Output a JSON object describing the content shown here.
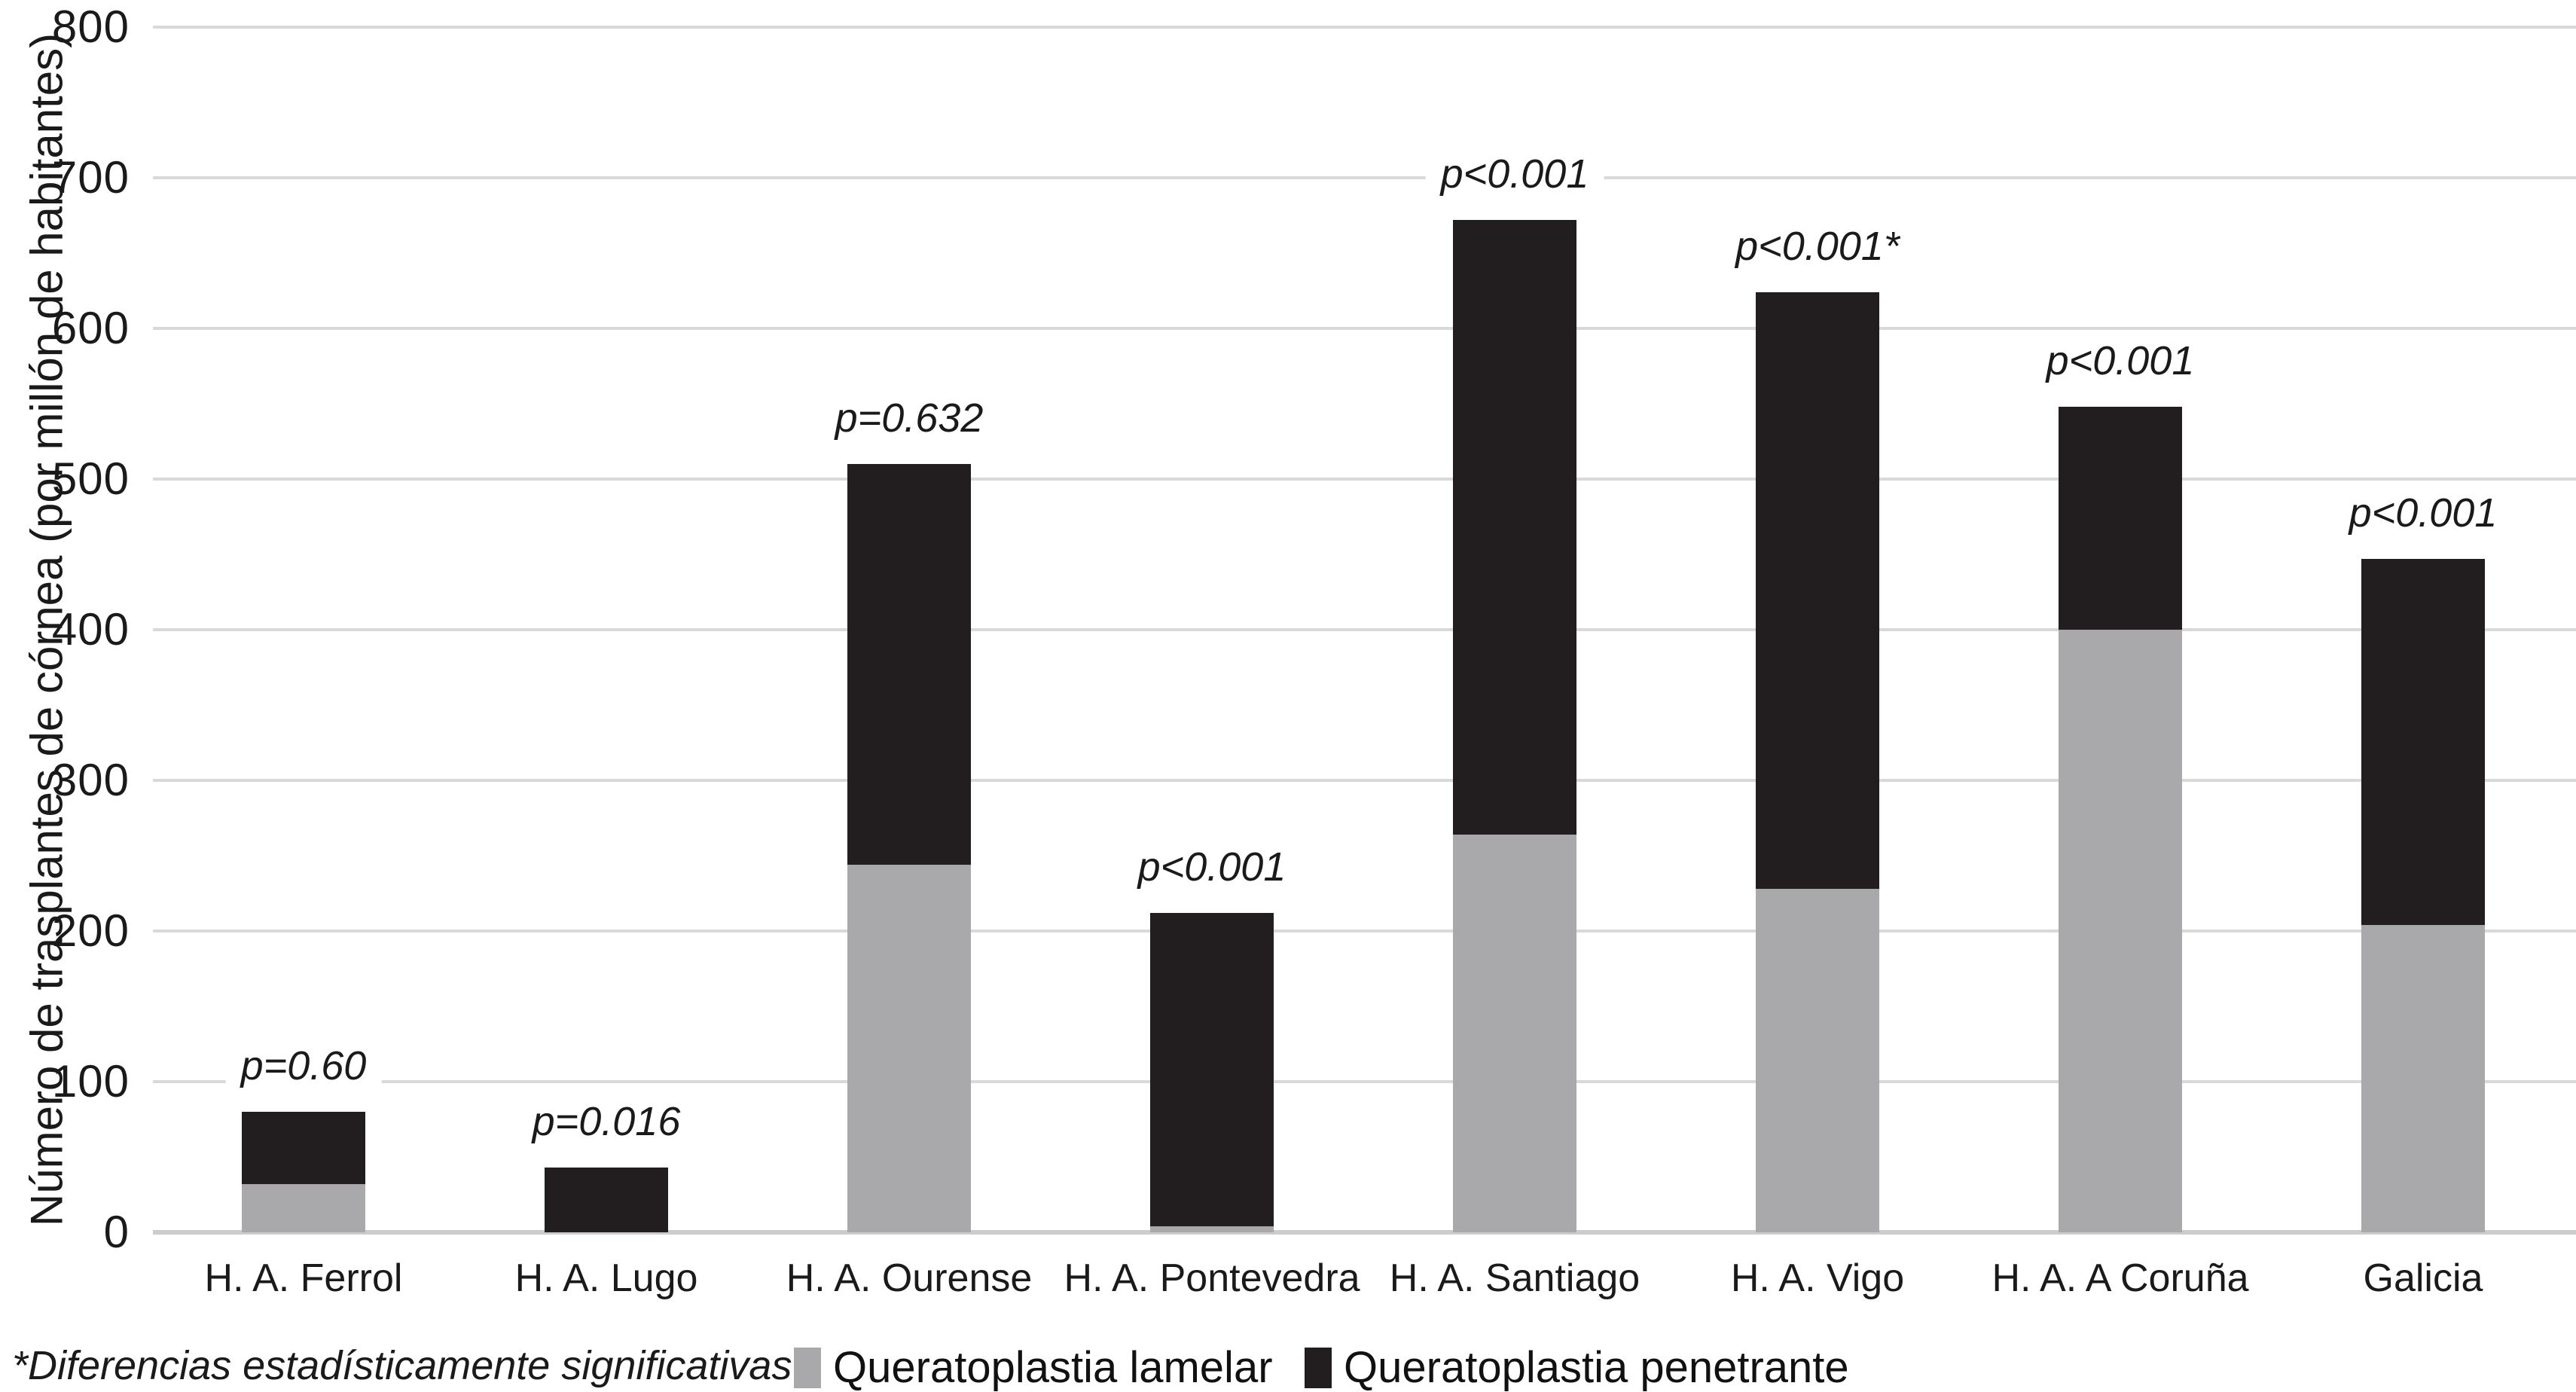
{
  "chart_data": {
    "type": "bar",
    "stacked": true,
    "title": "",
    "xlabel": "",
    "ylabel": "Número de trasplantes de córnea (por millón de habitantes)",
    "ylim": [
      0,
      800
    ],
    "ytick_step": 100,
    "yticks": [
      0,
      100,
      200,
      300,
      400,
      500,
      600,
      700,
      800
    ],
    "grid": true,
    "legend_position": "bottom",
    "categories": [
      "H. A. Ferrol",
      "H. A. Lugo",
      "H. A. Ourense",
      "H. A. Pontevedra",
      "H. A. Santiago",
      "H. A. Vigo",
      "H. A. A Coruña",
      "Galicia"
    ],
    "series": [
      {
        "name": "Queratoplastia lamelar",
        "color": "#a9a9ab",
        "values": [
          32,
          0,
          244,
          4,
          264,
          228,
          400,
          204
        ]
      },
      {
        "name": "Queratoplastia penetrante",
        "color": "#221e1f",
        "values": [
          48,
          43,
          266,
          208,
          408,
          396,
          148,
          243
        ]
      }
    ],
    "totals": [
      80,
      43,
      510,
      212,
      672,
      624,
      548,
      447
    ],
    "annotations": [
      "p=0.60",
      "p=0.016",
      "p=0.632",
      "p<0.001",
      "p<0.001",
      "p<0.001*",
      "p<0.001",
      "p<0.001"
    ]
  },
  "footnote": "*Diferencias estadísticamente significativas",
  "colors": {
    "gridline": "#d9d9d9",
    "baseline": "#cccccc",
    "text": "#1a1a1a",
    "background": "#ffffff"
  }
}
